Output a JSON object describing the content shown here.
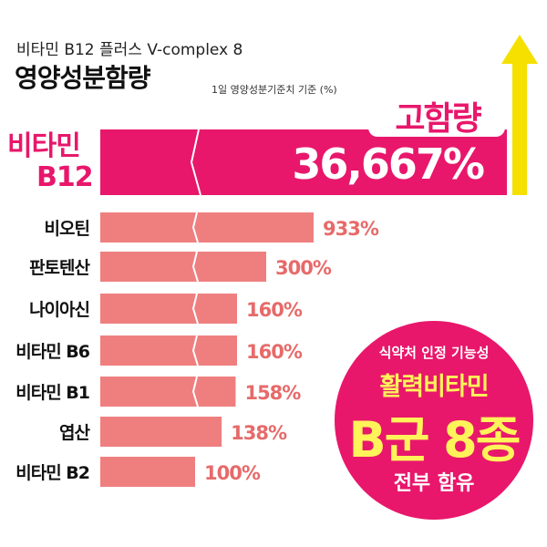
{
  "header": {
    "subtitle": "비타민 B12 플러스 V-complex 8",
    "title": "영양성분함량",
    "note": "1일 영양성분기준치 기준 (%)"
  },
  "highlight": {
    "label": "고함량"
  },
  "badge": {
    "line1": "식약처 인정 기능성",
    "line2": "활력비타민",
    "line3": "B군 8종",
    "line4": "전부 함유"
  },
  "icons": {
    "arrow": "up-arrow-icon"
  },
  "colors": {
    "accent": "#e8176b",
    "bar": "#ef7f7f",
    "label": "#e76a6a",
    "arrow": "#f5e000"
  },
  "chart_data": {
    "type": "bar",
    "orientation": "horizontal",
    "broken_axis": true,
    "categories": [
      "비타민 B12",
      "비오틴",
      "판토텐산",
      "나이아신",
      "비타민 B6",
      "비타민 B1",
      "엽산",
      "비타민 B2"
    ],
    "category_lines": [
      [
        "비타민",
        "B12"
      ],
      [
        "비오틴"
      ],
      [
        "판토텐산"
      ],
      [
        "나이아신"
      ],
      [
        "비타민 B6"
      ],
      [
        "비타민 B1"
      ],
      [
        "엽산"
      ],
      [
        "비타민 B2"
      ]
    ],
    "values": [
      36667,
      933,
      300,
      160,
      160,
      158,
      138,
      100
    ],
    "value_labels": [
      "36,667%",
      "933%",
      "300%",
      "160%",
      "160%",
      "158%",
      "138%",
      "100%"
    ]
  }
}
